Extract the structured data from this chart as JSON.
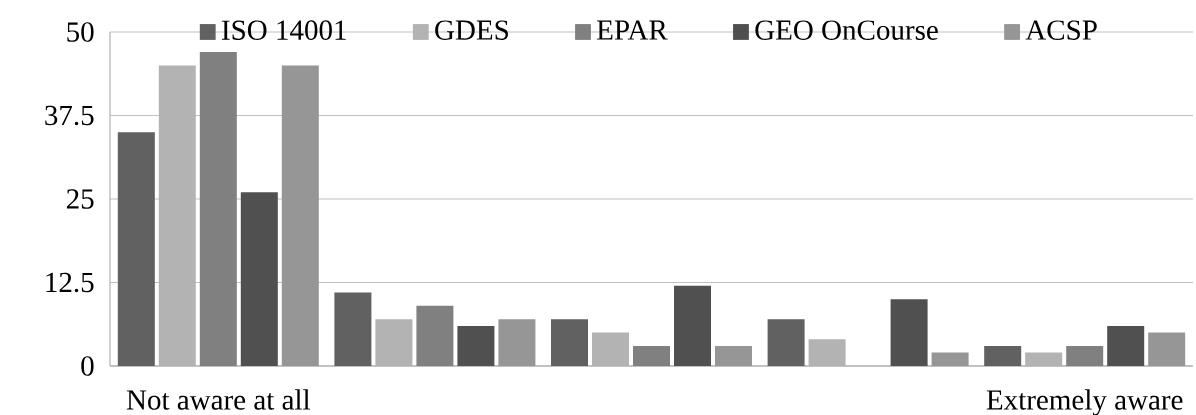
{
  "chart_data": {
    "type": "bar",
    "categories": [
      "Not aware at all",
      null,
      null,
      null,
      "Extremely aware"
    ],
    "series": [
      {
        "name": "ISO 14001",
        "color": "#616161",
        "values": [
          35,
          11,
          7,
          7,
          3
        ]
      },
      {
        "name": "GDES",
        "color": "#b3b3b3",
        "values": [
          45,
          7,
          5,
          4,
          2
        ]
      },
      {
        "name": "EPAR",
        "color": "#808080",
        "values": [
          47,
          9,
          3,
          0,
          3
        ]
      },
      {
        "name": "GEO OnCourse",
        "color": "#505050",
        "values": [
          26,
          6,
          12,
          10,
          6
        ]
      },
      {
        "name": "ACSP",
        "color": "#969696",
        "values": [
          45,
          7,
          3,
          2,
          5
        ]
      }
    ],
    "ylim": [
      0,
      50
    ],
    "yticks": [
      0,
      12.5,
      25,
      37.5,
      50
    ],
    "grid": "y",
    "legend": "top"
  }
}
